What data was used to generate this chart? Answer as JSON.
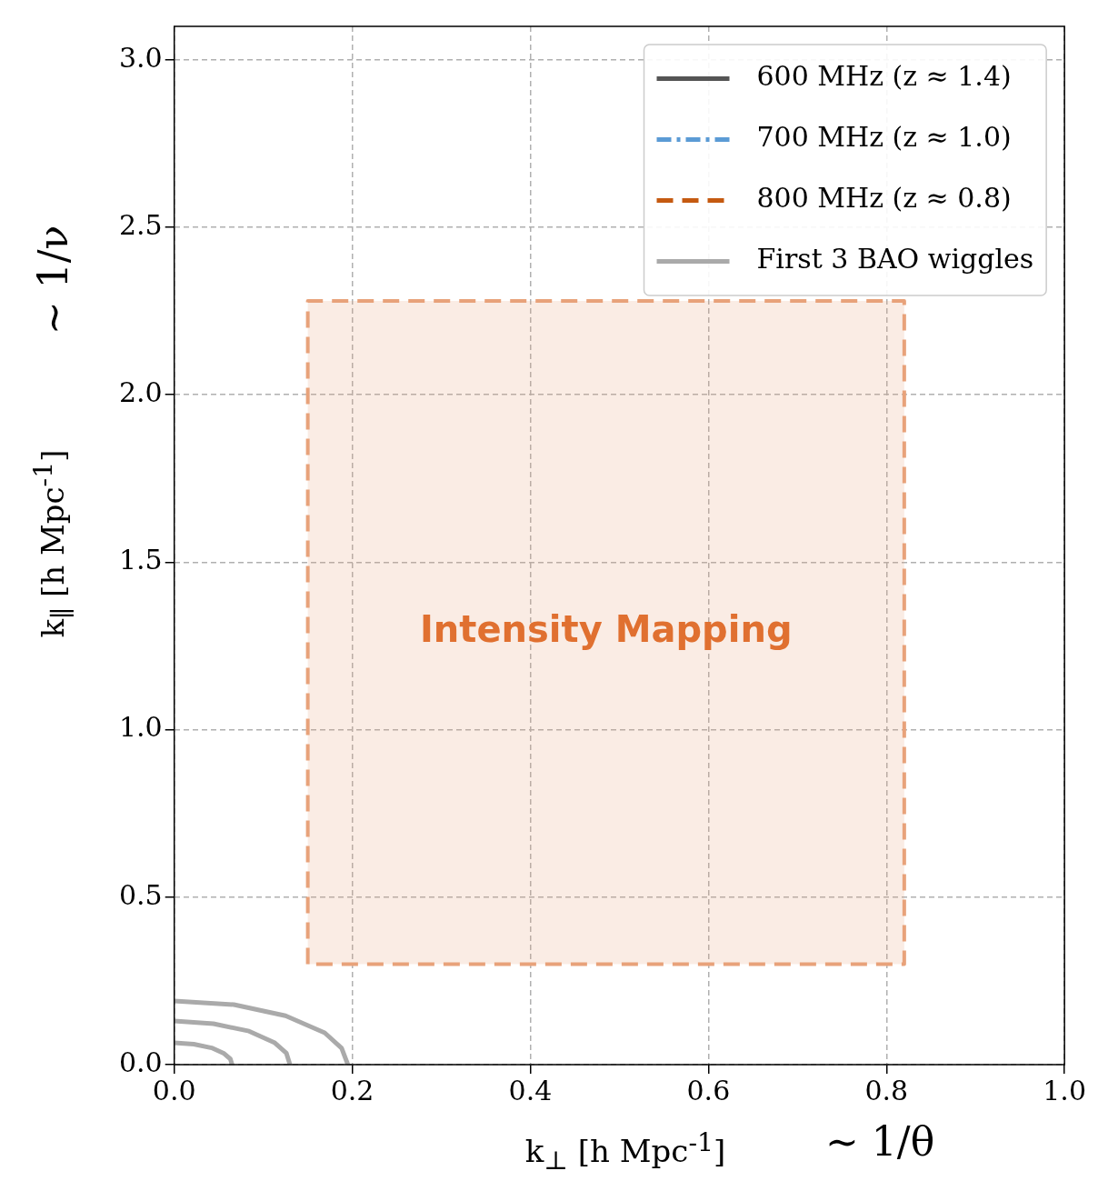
{
  "chart_data": {
    "type": "line",
    "xlabel": "k$_{⊥}$ [h Mpc$^{-1}$]",
    "ylabel": "k$_{∥}$ [h Mpc$^{-1}$]",
    "annotations": [
      "∼ 1/ν",
      "∼ 1/θ"
    ],
    "xlim": [
      0,
      1
    ],
    "ylim": [
      0,
      3.1
    ],
    "xticks": [
      {
        "value": 0,
        "label": "0.0"
      },
      {
        "value": 0.2,
        "label": "0.2"
      },
      {
        "value": 0.4,
        "label": "0.4"
      },
      {
        "value": 0.6,
        "label": "0.6"
      },
      {
        "value": 0.8,
        "label": "0.8"
      },
      {
        "value": 1,
        "label": "1.0"
      }
    ],
    "yticks": [
      {
        "value": 0,
        "label": "0.0"
      },
      {
        "value": 0.5,
        "label": "0.5"
      },
      {
        "value": 1,
        "label": "1.0"
      },
      {
        "value": 1.5,
        "label": "1.5"
      },
      {
        "value": 2,
        "label": "2.0"
      },
      {
        "value": 2.5,
        "label": "2.5"
      },
      {
        "value": 3,
        "label": "3.0"
      }
    ],
    "grid": true,
    "legend": "top right",
    "marker": "none",
    "series": [
      {
        "name": "600 MHz (z ≈ 1.4)",
        "color": "#555555",
        "line_style": "solid"
      },
      {
        "name": "700 MHz (z ≈ 1.0)",
        "color": "#5b9bd5",
        "line_style": "dashdot"
      },
      {
        "name": "800 MHz (z ≈ 0.8)",
        "color": "#c55a11",
        "line_style": "dashed"
      },
      {
        "name": "First 3 BAO wiggles",
        "color": "#aaaaaa",
        "line_style": "solid",
        "x": [
          0,
          0.022,
          0.042,
          0.056,
          0.063,
          0.065
        ],
        "values": [
          0.065,
          0.061,
          0.05,
          0.033,
          0.017,
          0
        ]
      },
      {
        "color": "#aaaaaa",
        "line_style": "solid",
        "x": [
          0,
          0.044,
          0.084,
          0.113,
          0.126,
          0.13
        ],
        "values": [
          0.13,
          0.122,
          0.1,
          0.065,
          0.034,
          0
        ]
      },
      {
        "color": "#aaaaaa",
        "line_style": "solid",
        "x": [
          0,
          0.067,
          0.125,
          0.169,
          0.188,
          0.195
        ],
        "values": [
          0.19,
          0.179,
          0.146,
          0.095,
          0.049,
          0
        ]
      },
      {
        "name": "Intensity Mapping",
        "type": "area",
        "color": "#e8a27a",
        "line_style": "dashed",
        "x": [
          0.15,
          0.15,
          0.82,
          0.82,
          0.15
        ],
        "values": [
          0.3,
          2.28,
          2.28,
          0.3,
          0.3
        ]
      }
    ]
  }
}
